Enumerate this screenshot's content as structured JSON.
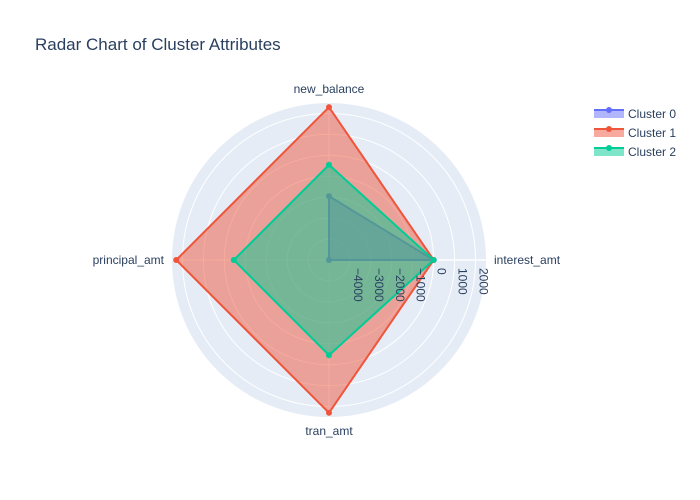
{
  "chart_data": {
    "type": "radar",
    "title": "Radar Chart of Cluster Attributes",
    "axes": [
      "interest_amt",
      "new_balance",
      "principal_amt",
      "tran_amt"
    ],
    "radial_range": [
      -5000,
      2500
    ],
    "radial_ticks": [
      -4000,
      -3000,
      -2000,
      -1000,
      0,
      1000,
      2000
    ],
    "radial_tick_labels": [
      "−4000",
      "−3000",
      "−2000",
      "−1000",
      "0",
      "1000",
      "2000"
    ],
    "series": [
      {
        "name": "Cluster 0",
        "color": "#636efa",
        "values": [
          0,
          -1950,
          -5000,
          -5000
        ]
      },
      {
        "name": "Cluster 1",
        "color": "#ef553b",
        "values": [
          0,
          2300,
          2300,
          2300
        ]
      },
      {
        "name": "Cluster 2",
        "color": "#00cc96",
        "values": [
          0,
          -450,
          -450,
          -450
        ]
      }
    ],
    "legend_position": "top-right",
    "grid": true
  }
}
